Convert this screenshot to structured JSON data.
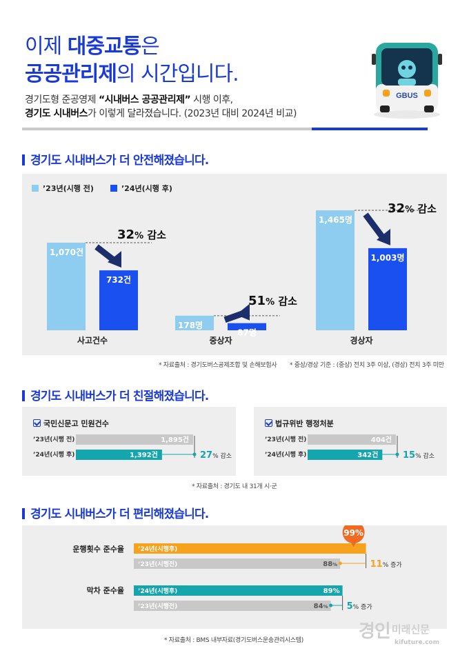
{
  "header": {
    "title_line1_pre": "이제 ",
    "title_line1_bold": "대중교통",
    "title_line1_post": "은",
    "title_line2_bold": "공공관리제",
    "title_line2_post": "의 시간입니다.",
    "sub1_pre": "경기도형 준공영제 ",
    "sub1_bold": "“시내버스 공공관리제”",
    "sub1_post": " 시행 이후,",
    "sub2_bold": "경기도 시내버스",
    "sub2_post": "가 이렇게 달라졌습니다. (2023년 대비 2024년 비교)",
    "bus_brand": "GBUS"
  },
  "section1": {
    "title_pre": "경기도 시내버스가 ",
    "title_accent": "더 안전해졌습니다."
  },
  "section2": {
    "title_pre": "경기도 시내버스가 ",
    "title_accent": "더 친절해졌습니다."
  },
  "section3": {
    "title_pre": "경기도 시내버스가 ",
    "title_accent": "더 편리해졌습니다."
  },
  "colors": {
    "before": "#8ecdf0",
    "after": "#1a4ff0",
    "teal": "#14a5ad",
    "orange": "#f7a21c",
    "grey": "#c8c8c8",
    "panel": "#eeeeee",
    "brand_blue": "#1a3ad6"
  },
  "chart_data": [
    {
      "type": "bar",
      "legend": [
        "’23년(시행 전)",
        "’24년(시행 후)"
      ],
      "categories": [
        "사고건수",
        "중상자",
        "경상자"
      ],
      "series": [
        {
          "name": "’23년(시행 전)",
          "values": [
            1070,
            178,
            1465
          ],
          "labels": [
            "1,070건",
            "178명",
            "1,465명"
          ]
        },
        {
          "name": "’24년(시행 후)",
          "values": [
            732,
            87,
            1003
          ],
          "labels": [
            "732건",
            "87명",
            "1,003명"
          ]
        }
      ],
      "decreases": [
        {
          "num": "32",
          "unit": "%",
          "word": " 감소"
        },
        {
          "num": "51",
          "unit": "%",
          "word": " 감소"
        },
        {
          "num": "32",
          "unit": "%",
          "word": " 감소"
        }
      ],
      "note_source": "* 자료출처 : 경기도버스공제조합 및 손해보험사",
      "note_criteria": "* 중상/경상 기준 : (중상) 전치 3주 이상, (경상) 전치 3주 미만"
    },
    {
      "type": "bar",
      "title": "국민신문고 민원건수",
      "rows": [
        {
          "label": "’23년(시행 전)",
          "value": 1895,
          "text": "1,895건"
        },
        {
          "label": "’24년(시행 후)",
          "value": 1392,
          "text": "1,392건"
        }
      ],
      "change_num": "27",
      "change_word": "% 감소"
    },
    {
      "type": "bar",
      "title": "법규위반 행정처분",
      "rows": [
        {
          "label": "’23년(시행 전)",
          "value": 404,
          "text": "404건"
        },
        {
          "label": "’24년(시행 후)",
          "value": 342,
          "text": "342건"
        }
      ],
      "change_num": "15",
      "change_word": "% 감소",
      "note": "* 자료출처 : 경기도 내 31개 시·군"
    },
    {
      "type": "bar",
      "groups": [
        {
          "label": "운행횟수 준수율",
          "rows": [
            {
              "label": "’24년(시행후)",
              "value": 99
            },
            {
              "label": "’23년(시행전)",
              "value": 88,
              "text_num": "88",
              "text_unit": "%"
            }
          ],
          "badge": "99%",
          "change_num": "11",
          "change_word": "% 증가"
        },
        {
          "label": "막차 준수율",
          "rows": [
            {
              "label": "’24년(시행후)",
              "value": 89,
              "text": "89%"
            },
            {
              "label": "’23년(시행전)",
              "value": 84,
              "text_num": "84",
              "text_unit": "%"
            }
          ],
          "change_num": "5",
          "change_word": "% 증가"
        }
      ],
      "note": "* 자료출처 : BMS 내부자료(경기도버스운송관리시스템)"
    }
  ],
  "footer": {
    "logo_main": "경인",
    "logo_side": "미래신문",
    "logo_url": "kifuture.com"
  }
}
